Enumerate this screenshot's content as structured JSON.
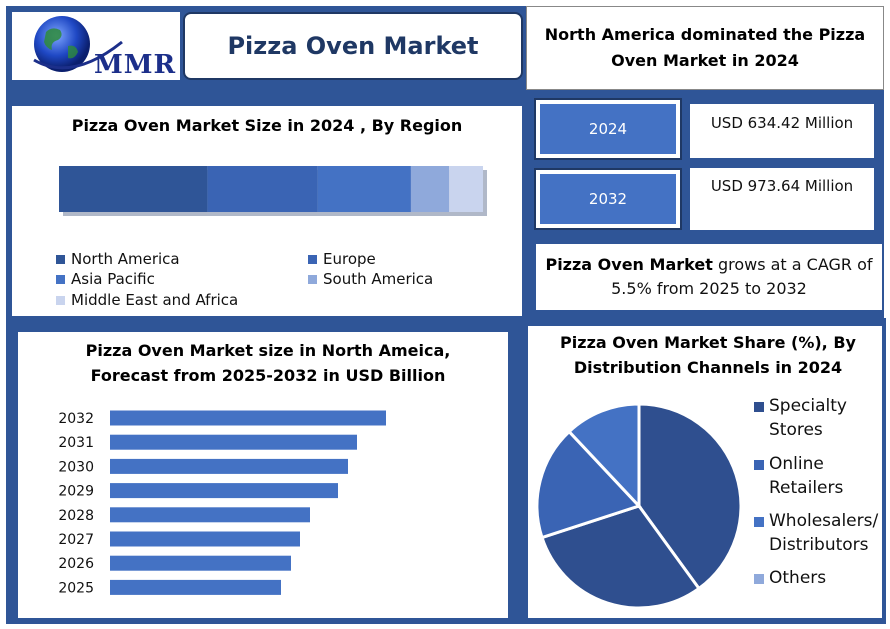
{
  "brand": {
    "logo_text": "MMR"
  },
  "header": {
    "title": "Pizza Oven Market",
    "headline": "North America dominated the Pizza Oven Market in 2024"
  },
  "stats": [
    {
      "year": "2024",
      "value": "USD 634.42 Million"
    },
    {
      "year": "2032",
      "value": "USD 973.64 Million"
    }
  ],
  "cagr": {
    "subject": "Pizza Oven Market",
    "text": "grows at a CAGR of 5.5% from 2025 to 2032"
  },
  "colors": {
    "frame": "#2f5597",
    "north_america": "#2f5597",
    "europe": "#3a64b4",
    "asia_pacific": "#4472c4",
    "south_america": "#8fa9db",
    "mea": "#c9d4ee",
    "bar": "#4472c4",
    "pie_dark": "#2f4f8f"
  },
  "chart_data": [
    {
      "type": "bar",
      "orientation": "horizontal-stacked",
      "title": "Pizza Oven Market Size in 2024 , By Region",
      "categories": [
        "2024"
      ],
      "series": [
        {
          "name": "North America",
          "values": [
            35
          ]
        },
        {
          "name": "Europe",
          "values": [
            26
          ]
        },
        {
          "name": "Asia Pacific",
          "values": [
            22
          ]
        },
        {
          "name": "South America",
          "values": [
            9
          ]
        },
        {
          "name": "Middle East and Africa",
          "values": [
            8
          ]
        }
      ],
      "legend": "bottom"
    },
    {
      "type": "bar",
      "orientation": "horizontal",
      "title": "Pizza Oven Market size in North Ameica, Forecast from 2025-2032 in USD Billion",
      "categories": [
        "2032",
        "2031",
        "2030",
        "2029",
        "2028",
        "2027",
        "2026",
        "2025"
      ],
      "values": [
        276,
        247,
        238,
        228,
        200,
        190,
        181,
        171
      ],
      "xlim": [
        0,
        300
      ],
      "grid": false
    },
    {
      "type": "pie",
      "title": "Pizza Oven Market Share (%), By Distribution Channels in 2024",
      "labels": [
        "Specialty Stores",
        "Online Retailers",
        "Wholesalers/ Distributors",
        "Others"
      ],
      "label_lines": [
        [
          "Specialty",
          "Stores"
        ],
        [
          "Online",
          "Retailers"
        ],
        [
          "Wholesalers/",
          "Distributors"
        ],
        [
          "Others"
        ]
      ],
      "values": [
        40,
        30,
        18,
        12
      ],
      "legend": "right"
    }
  ]
}
